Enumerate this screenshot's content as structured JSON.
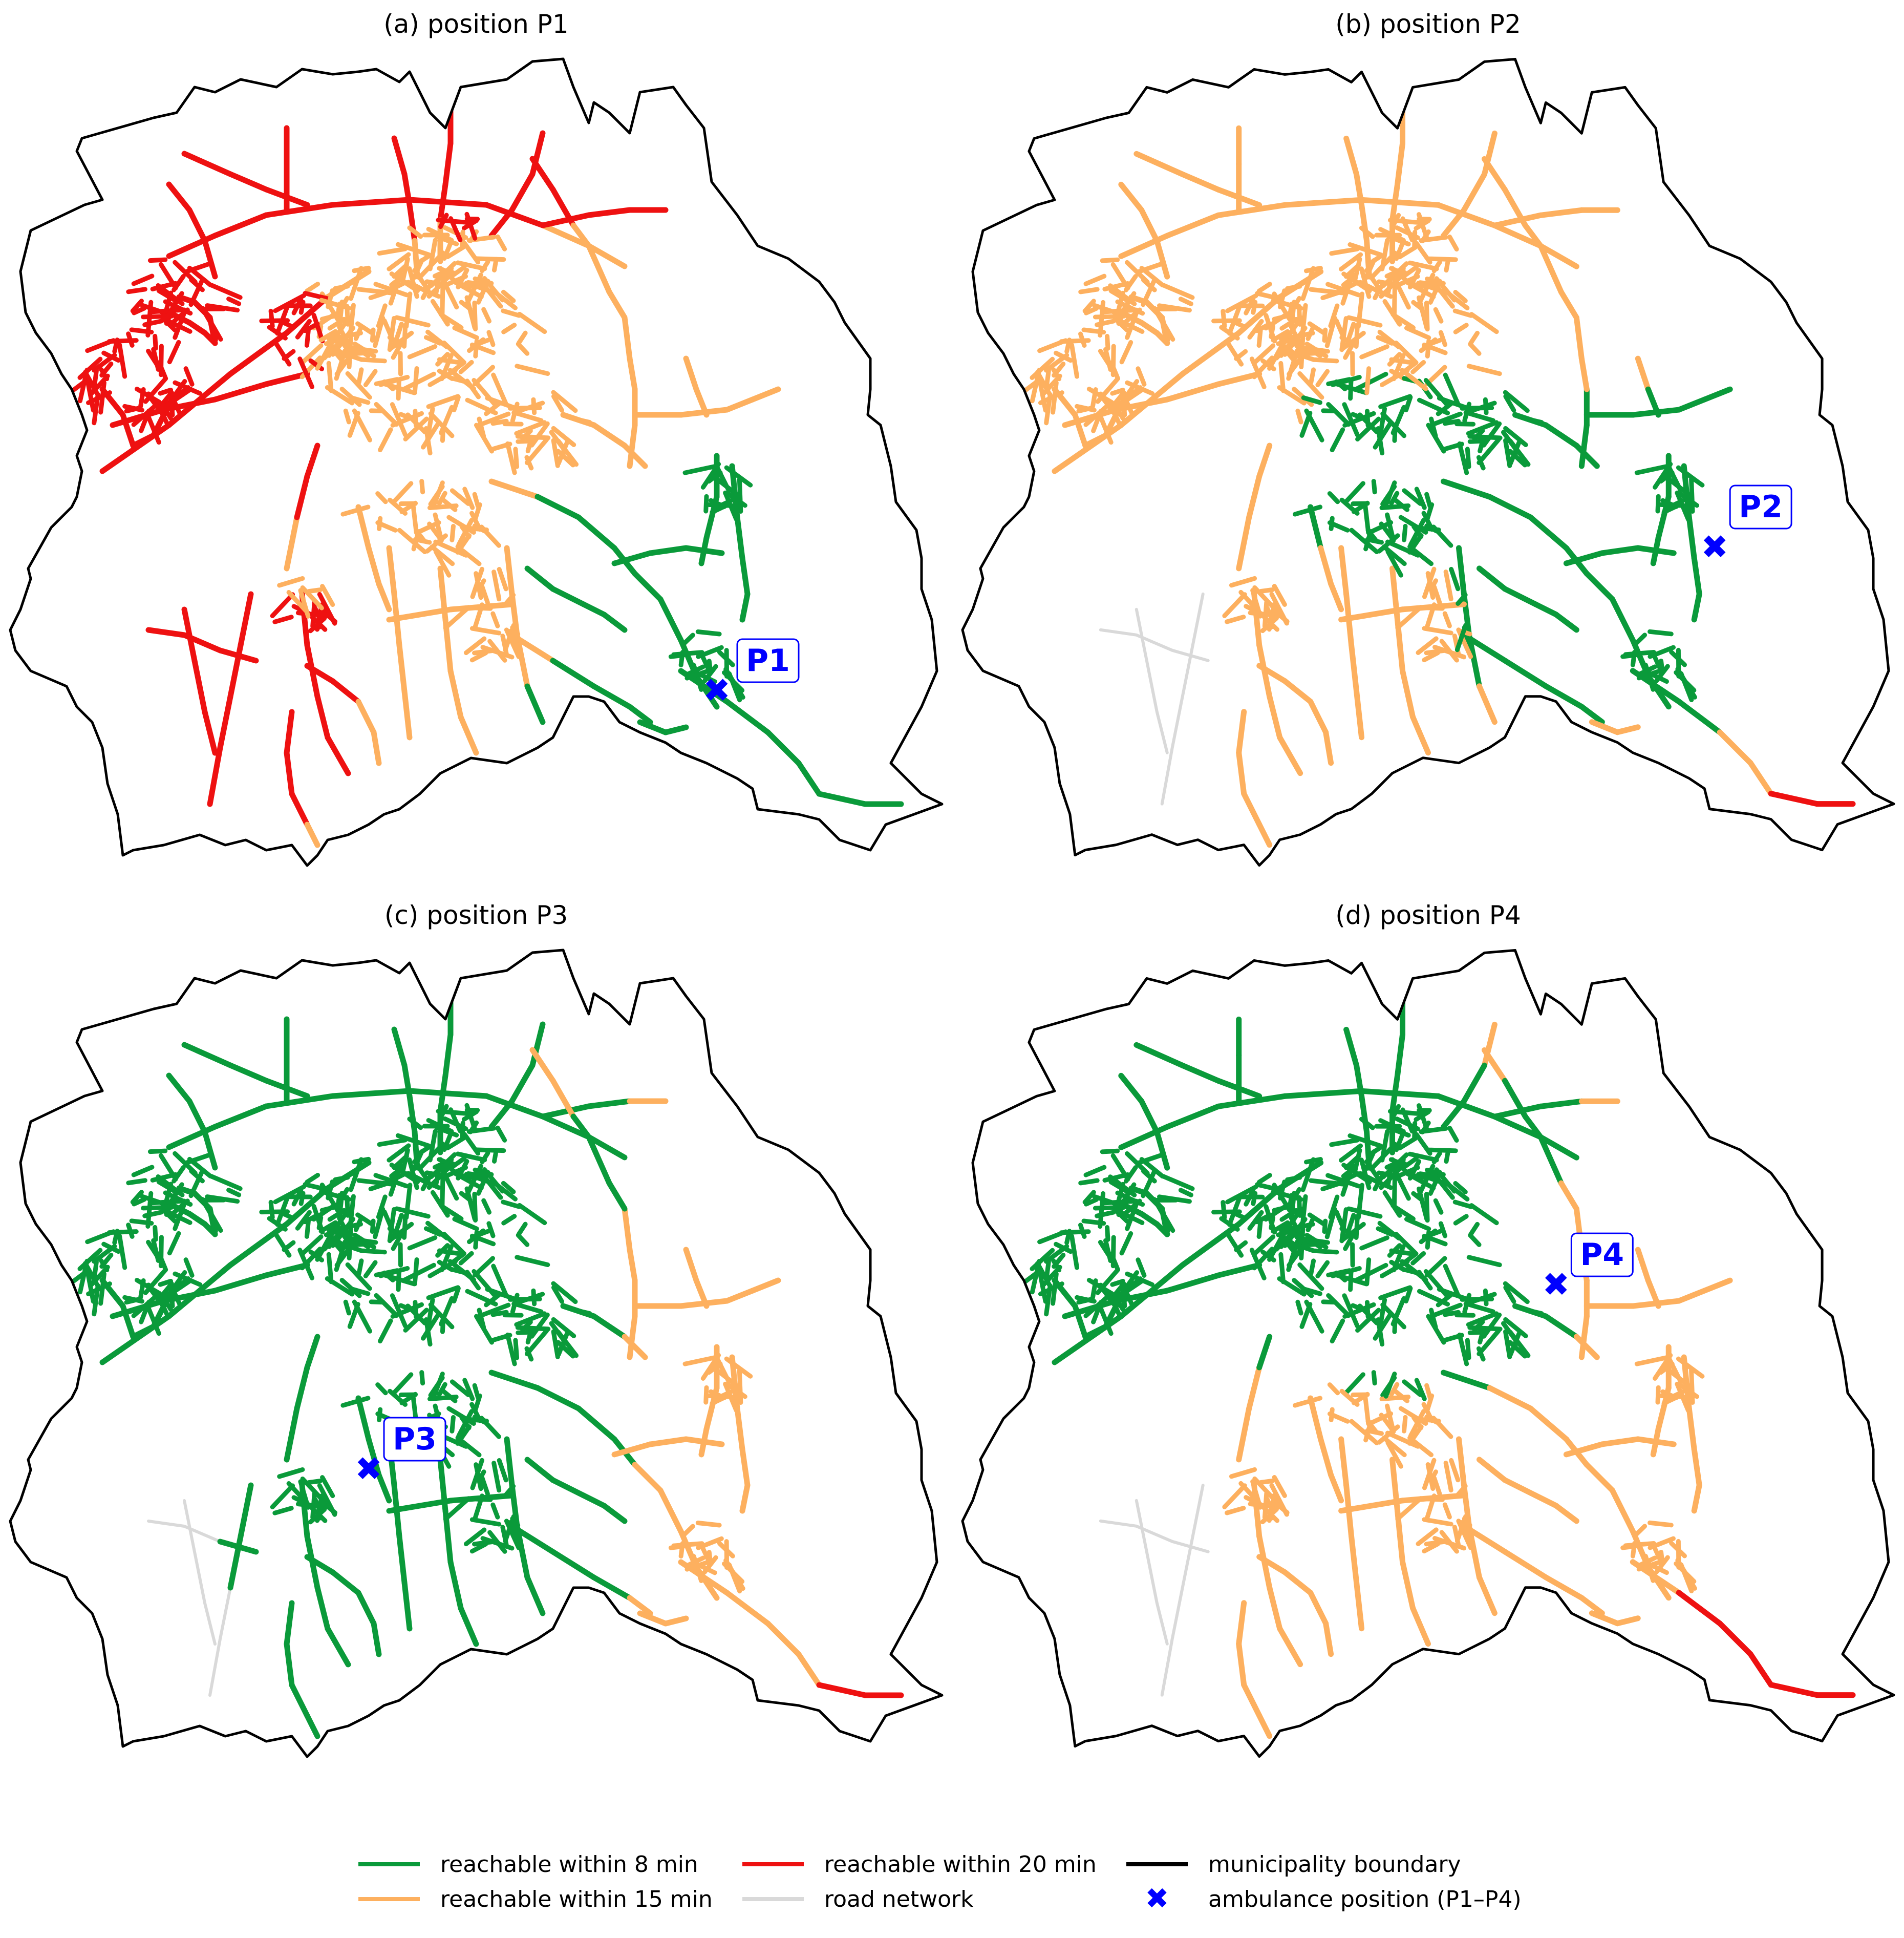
{
  "colors": {
    "green": "#0a9a3a",
    "orange": "#fdb05f",
    "red": "#ee1111",
    "road": "#d9d9d9",
    "boundary": "#000000",
    "marker": "#0000ff"
  },
  "panels": [
    {
      "title": "(a) position P1",
      "label": "P1",
      "mode": "p1"
    },
    {
      "title": "(b) position P2",
      "label": "P2",
      "mode": "p2"
    },
    {
      "title": "(c) position P3",
      "label": "P3",
      "mode": "p3"
    },
    {
      "title": "(d) position P4",
      "label": "P4",
      "mode": "p4"
    }
  ],
  "legend": {
    "green": "reachable within 8 min",
    "orange": "reachable within 15 min",
    "red": "reachable within 20 min",
    "road": "road network",
    "boundary": "municipality boundary",
    "marker": "ambulance position (P1–P4)"
  }
}
